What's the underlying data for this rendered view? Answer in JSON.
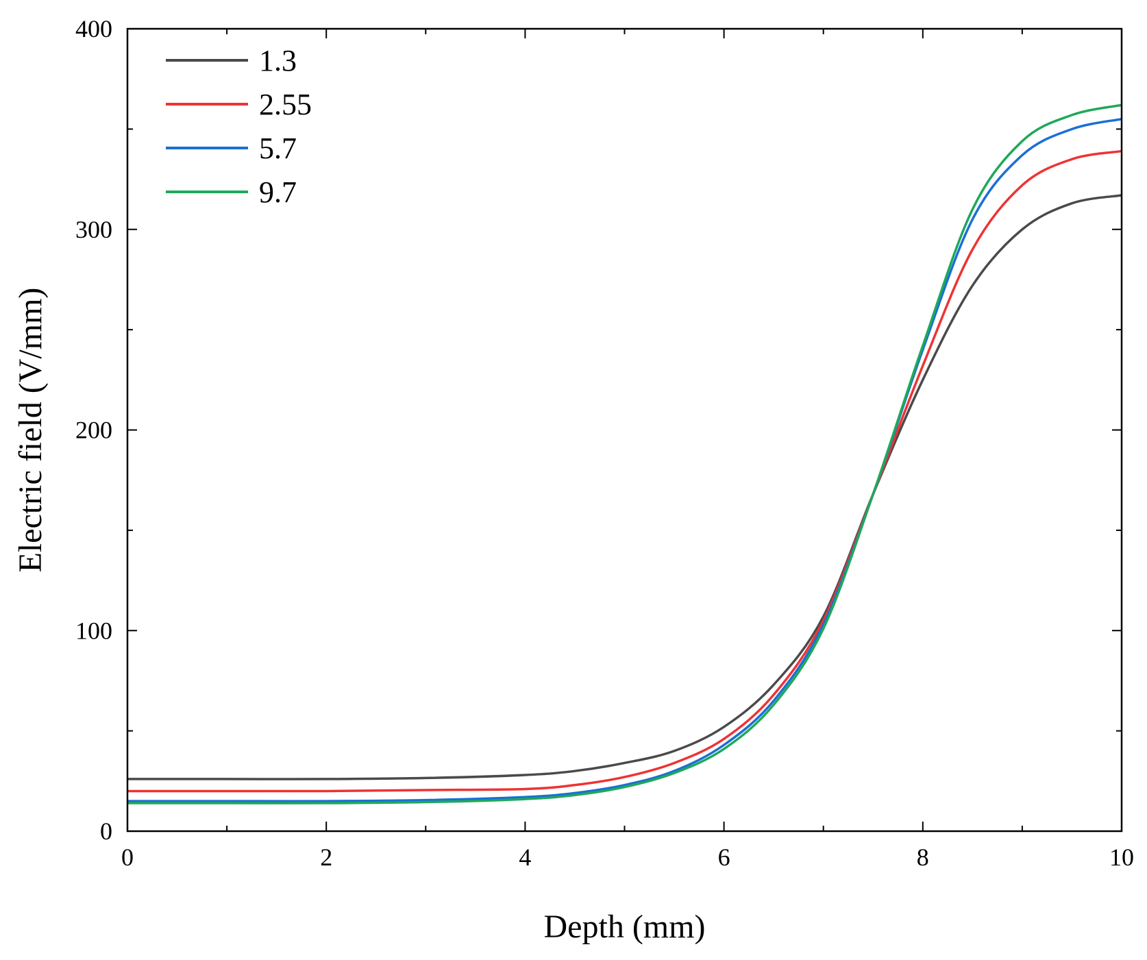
{
  "chart_data": {
    "type": "line",
    "title": "",
    "xlabel": "Depth (mm)",
    "ylabel": "Electric field (V/mm)",
    "xlim": [
      0,
      10
    ],
    "ylim": [
      0,
      400
    ],
    "xticks": [
      0,
      2,
      4,
      6,
      8,
      10
    ],
    "yticks": [
      0,
      100,
      200,
      300,
      400
    ],
    "xtick_labels": [
      "0",
      "2",
      "4",
      "6",
      "8",
      "10"
    ],
    "ytick_labels": [
      "0",
      "100",
      "200",
      "300",
      "400"
    ],
    "grid": false,
    "legend_position": "top-left",
    "x": [
      0,
      1,
      2,
      3,
      4,
      4.5,
      5,
      5.5,
      6,
      6.5,
      7,
      7.5,
      8,
      8.5,
      9,
      9.5,
      10
    ],
    "series": [
      {
        "name": "1.3",
        "color": "#4a4a4a",
        "values": [
          26,
          26,
          26,
          26.5,
          28,
          30,
          34,
          40,
          52,
          73,
          107,
          168,
          225,
          272,
          300,
          313,
          317
        ]
      },
      {
        "name": "2.55",
        "color": "#ee3333",
        "values": [
          20,
          20,
          20,
          20.5,
          21,
          23,
          27,
          34,
          46,
          68,
          105,
          168,
          232,
          290,
          322,
          335,
          339
        ]
      },
      {
        "name": "5.7",
        "color": "#1a6fd6",
        "values": [
          15,
          15,
          15,
          15.5,
          17,
          19,
          23,
          30,
          43,
          65,
          103,
          168,
          240,
          305,
          337,
          350,
          355
        ]
      },
      {
        "name": "9.7",
        "color": "#1fa85a",
        "values": [
          14,
          14,
          14,
          14.5,
          16,
          18,
          22,
          29,
          41,
          63,
          101,
          168,
          242,
          310,
          344,
          357,
          362
        ]
      }
    ]
  }
}
